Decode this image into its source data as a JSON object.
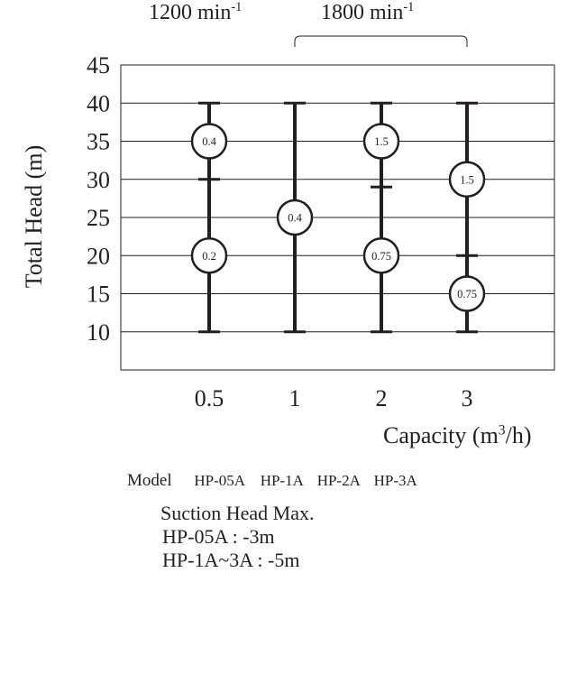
{
  "chart_data": {
    "type": "range",
    "title": "",
    "ylabel": "Total Head (m)",
    "xlabel_main": "Capacity (m",
    "xlabel_sup": "3",
    "xlabel_end": "/h)",
    "ylim": [
      5,
      45
    ],
    "y_ticks": [
      45,
      40,
      35,
      30,
      25,
      20,
      15,
      10
    ],
    "categories": [
      "0.5",
      "1",
      "2",
      "3"
    ],
    "speed_labels": {
      "low": "1200 min",
      "high": "1800 min",
      "unit_exp": "-1"
    },
    "series": [
      {
        "category": "0.5",
        "range": [
          10,
          40
        ],
        "ticks": [
          30
        ],
        "markers": [
          {
            "y": 35,
            "label": "0.4"
          },
          {
            "y": 20,
            "label": "0.2"
          }
        ]
      },
      {
        "category": "1",
        "range": [
          10,
          40
        ],
        "ticks": [],
        "markers": [
          {
            "y": 25,
            "label": "0.4"
          }
        ]
      },
      {
        "category": "2",
        "range": [
          10,
          40
        ],
        "ticks": [
          29
        ],
        "markers": [
          {
            "y": 35,
            "label": "1.5"
          },
          {
            "y": 20,
            "label": "0.75"
          }
        ]
      },
      {
        "category": "3",
        "range": [
          10,
          40
        ],
        "ticks": [
          20
        ],
        "markers": [
          {
            "y": 30,
            "label": "1.5"
          },
          {
            "y": 15,
            "label": "0.75"
          }
        ]
      }
    ]
  },
  "model_row": {
    "label": "Model",
    "models": [
      "HP-05A",
      "HP-1A",
      "HP-2A",
      "HP-3A"
    ]
  },
  "suction": {
    "title": "Suction Head Max.",
    "line1": "HP-05A : -3m",
    "line2": "HP-1A~3A : -5m"
  }
}
